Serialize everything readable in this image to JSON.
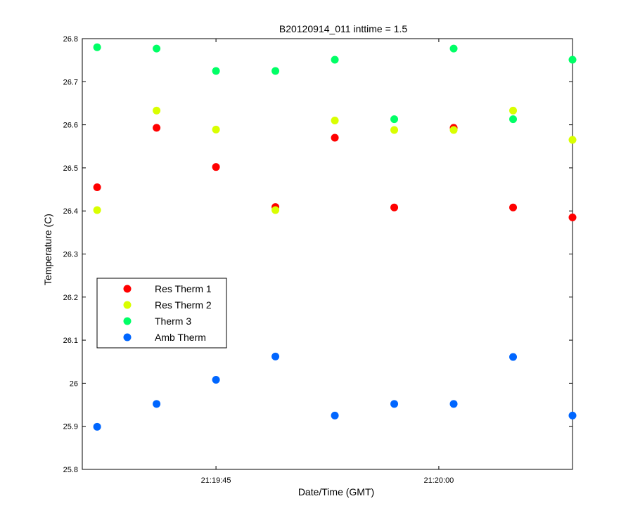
{
  "chart_data": {
    "type": "scatter",
    "title": "B20120914_011 inttime = 1.5",
    "xlabel": "Date/Time (GMT)",
    "ylabel": "Temperature (C)",
    "xlim": [
      "21:19:36",
      "21:20:09"
    ],
    "ylim": [
      25.8,
      26.8
    ],
    "x_ticks": [
      "21:19:45",
      "21:20:00"
    ],
    "y_ticks": [
      "25.8",
      "25.9",
      "26",
      "26.1",
      "26.2",
      "26.3",
      "26.4",
      "26.5",
      "26.6",
      "26.7",
      "26.8"
    ],
    "grid": false,
    "legend_position": "left",
    "x": [
      "21:19:37",
      "21:19:41",
      "21:19:45",
      "21:19:49",
      "21:19:53",
      "21:19:57",
      "21:20:01",
      "21:20:05",
      "21:20:09"
    ],
    "series": [
      {
        "name": "Res Therm 1",
        "color": "#ff0000",
        "values": [
          26.455,
          26.593,
          26.502,
          26.409,
          26.57,
          26.408,
          26.593,
          26.408,
          26.385
        ]
      },
      {
        "name": "Res Therm 2",
        "color": "#d9ff00",
        "values": [
          26.402,
          26.633,
          26.589,
          26.402,
          26.61,
          26.588,
          26.588,
          26.633,
          26.565
        ]
      },
      {
        "name": "Therm 3",
        "color": "#00ff66",
        "values": [
          26.78,
          26.777,
          26.725,
          26.725,
          26.751,
          26.613,
          26.777,
          26.613,
          26.751
        ]
      },
      {
        "name": "Amb Therm",
        "color": "#0066ff",
        "values": [
          25.899,
          25.952,
          26.008,
          26.062,
          25.925,
          25.952,
          25.952,
          26.061,
          25.925
        ]
      }
    ]
  }
}
